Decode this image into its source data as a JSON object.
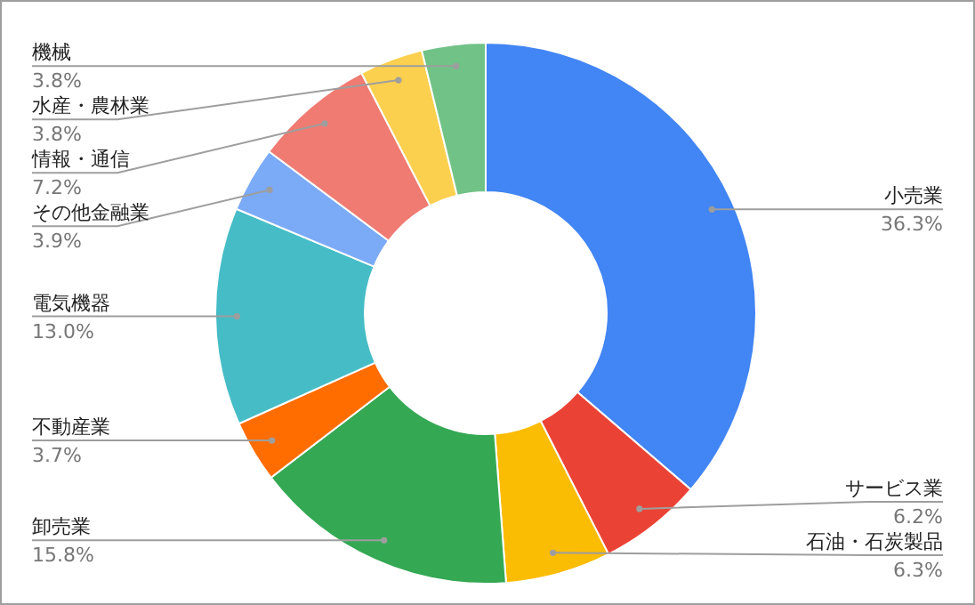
{
  "chart_data": {
    "type": "donut",
    "categories": [
      "小売業",
      "サービス業",
      "石油・石炭製品",
      "卸売業",
      "不動産業",
      "電気機器",
      "その他金融業",
      "情報・通信",
      "水産・農林業",
      "機械"
    ],
    "values": [
      36.3,
      6.2,
      6.3,
      15.8,
      3.7,
      13.0,
      3.9,
      7.2,
      3.8,
      3.8
    ],
    "value_labels": [
      "36.3%",
      "6.2%",
      "6.3%",
      "15.8%",
      "3.7%",
      "13.0%",
      "3.9%",
      "7.2%",
      "3.8%",
      "3.8%"
    ],
    "colors": [
      "#4285f4",
      "#ea4335",
      "#fbbc04",
      "#34a853",
      "#ff6d01",
      "#46bdc6",
      "#7baaf7",
      "#f07b72",
      "#fcd04f",
      "#71c287"
    ]
  }
}
